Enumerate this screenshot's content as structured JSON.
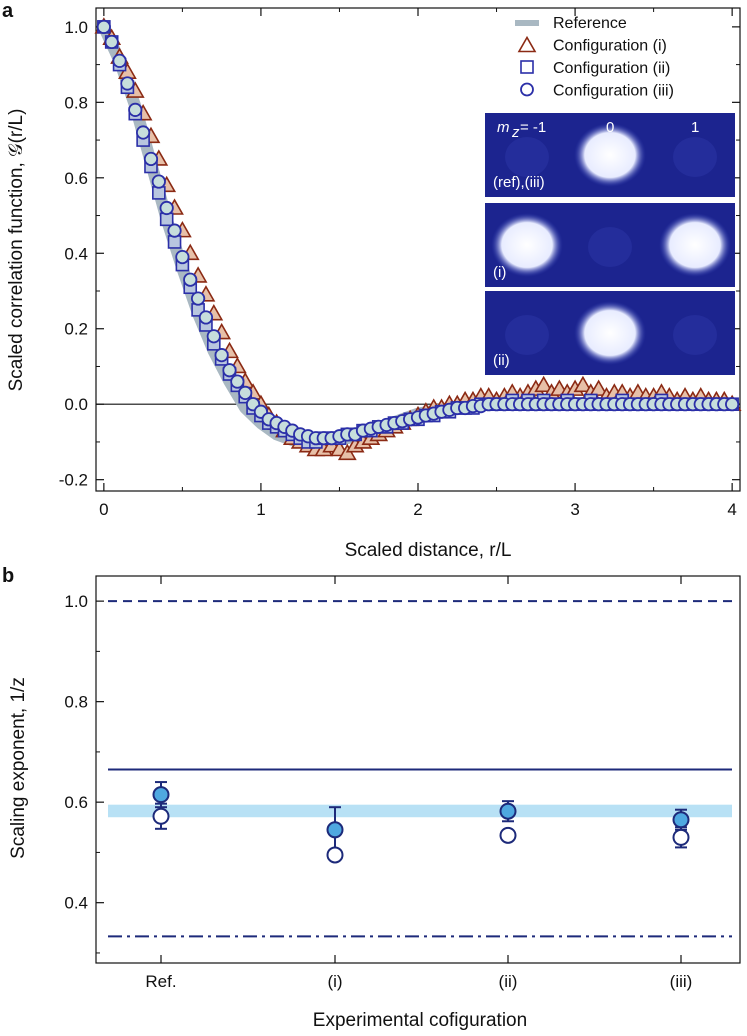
{
  "chart_data": [
    {
      "panel": "a",
      "type": "scatter",
      "xlabel": "Scaled distance, r/L",
      "ylabel": "Scaled correlation function, 𝒢(r/L)",
      "xlim": [
        -0.05,
        4.05
      ],
      "ylim": [
        -0.23,
        1.05
      ],
      "x_ticks": [
        "0",
        "1",
        "2",
        "3",
        "4"
      ],
      "x_tick_values": [
        0,
        1,
        2,
        3,
        4
      ],
      "y_ticks": [
        "1.0",
        "0.8",
        "0.6",
        "0.4",
        "0.2",
        "0.0",
        "-0.2"
      ],
      "y_tick_values": [
        1.0,
        0.8,
        0.6,
        0.4,
        0.2,
        0.0,
        -0.2
      ],
      "zero_line": true,
      "legend_position": "top-right",
      "legend": [
        "Reference",
        "Configuration (i)",
        "Configuration (ii)",
        "Configuration (iii)"
      ],
      "series": [
        {
          "name": "Reference",
          "marker": "band",
          "color": "#a9b8c2",
          "x": [
            0,
            0.1,
            0.2,
            0.3,
            0.4,
            0.5,
            0.6,
            0.7,
            0.8,
            0.9,
            1.0,
            1.1,
            1.2,
            1.3,
            1.4,
            1.5,
            1.6,
            1.7,
            1.8,
            1.9,
            2.0,
            2.2,
            2.4,
            2.6,
            2.8,
            3.0,
            3.2,
            3.4,
            3.6,
            3.8,
            4.0
          ],
          "y": [
            1.0,
            0.91,
            0.79,
            0.64,
            0.49,
            0.36,
            0.24,
            0.14,
            0.06,
            -0.01,
            -0.05,
            -0.08,
            -0.095,
            -0.1,
            -0.1,
            -0.095,
            -0.085,
            -0.07,
            -0.055,
            -0.04,
            -0.025,
            -0.01,
            0.0,
            0.005,
            0.005,
            0.003,
            0.002,
            0.001,
            0.0,
            0.0,
            0.0
          ]
        },
        {
          "name": "Configuration (i)",
          "marker": "triangle",
          "color": "#8b2a14",
          "x": [
            0,
            0.05,
            0.1,
            0.15,
            0.2,
            0.25,
            0.3,
            0.35,
            0.4,
            0.45,
            0.5,
            0.55,
            0.6,
            0.65,
            0.7,
            0.75,
            0.8,
            0.85,
            0.9,
            0.95,
            1.0,
            1.05,
            1.1,
            1.15,
            1.2,
            1.25,
            1.3,
            1.35,
            1.4,
            1.45,
            1.5,
            1.55,
            1.6,
            1.65,
            1.7,
            1.75,
            1.8,
            1.85,
            1.9,
            1.95,
            2.0,
            2.05,
            2.1,
            2.15,
            2.2,
            2.25,
            2.3,
            2.35,
            2.4,
            2.45,
            2.5,
            2.55,
            2.6,
            2.65,
            2.7,
            2.75,
            2.8,
            2.85,
            2.9,
            2.95,
            3.0,
            3.05,
            3.1,
            3.15,
            3.2,
            3.25,
            3.3,
            3.35,
            3.4,
            3.45,
            3.5,
            3.55,
            3.6,
            3.65,
            3.7,
            3.75,
            3.8,
            3.85,
            3.9,
            3.95,
            4.0
          ],
          "y": [
            1.0,
            0.97,
            0.92,
            0.88,
            0.83,
            0.77,
            0.71,
            0.65,
            0.58,
            0.52,
            0.46,
            0.4,
            0.34,
            0.29,
            0.24,
            0.19,
            0.14,
            0.1,
            0.06,
            0.03,
            0.0,
            -0.03,
            -0.05,
            -0.07,
            -0.09,
            -0.1,
            -0.11,
            -0.12,
            -0.12,
            -0.11,
            -0.12,
            -0.13,
            -0.11,
            -0.1,
            -0.09,
            -0.08,
            -0.07,
            -0.06,
            -0.05,
            -0.04,
            -0.03,
            -0.02,
            -0.01,
            -0.01,
            0.0,
            0.0,
            0.01,
            0.01,
            0.02,
            0.02,
            0.01,
            0.02,
            0.03,
            0.02,
            0.03,
            0.04,
            0.05,
            0.03,
            0.04,
            0.03,
            0.04,
            0.05,
            0.03,
            0.04,
            0.02,
            0.03,
            0.03,
            0.02,
            0.03,
            0.02,
            0.02,
            0.03,
            0.02,
            0.01,
            0.02,
            0.01,
            0.02,
            0.01,
            0.01,
            0.01,
            0.0
          ]
        },
        {
          "name": "Configuration (ii)",
          "marker": "square",
          "color": "#2b2fa8",
          "x": [
            0,
            0.05,
            0.1,
            0.15,
            0.2,
            0.25,
            0.3,
            0.35,
            0.4,
            0.45,
            0.5,
            0.55,
            0.6,
            0.65,
            0.7,
            0.75,
            0.8,
            0.85,
            0.9,
            0.95,
            1.0,
            1.05,
            1.1,
            1.15,
            1.2,
            1.25,
            1.3,
            1.35,
            1.4,
            1.45,
            1.5,
            1.55,
            1.6,
            1.65,
            1.7,
            1.75,
            1.8,
            1.85,
            1.9,
            1.95,
            2.0,
            2.05,
            2.1,
            2.15,
            2.2,
            2.25,
            2.3,
            2.35,
            2.4,
            2.45,
            2.5,
            2.55,
            2.6,
            2.65,
            2.7,
            2.75,
            2.8,
            2.85,
            2.9,
            2.95,
            3.0,
            3.05,
            3.1,
            3.15,
            3.2,
            3.25,
            3.3,
            3.35,
            3.4,
            3.45,
            3.5,
            3.55,
            3.6,
            3.65,
            3.7,
            3.75,
            3.8,
            3.85,
            3.9,
            3.95,
            4.0
          ],
          "y": [
            1.0,
            0.96,
            0.9,
            0.84,
            0.77,
            0.7,
            0.63,
            0.56,
            0.49,
            0.43,
            0.37,
            0.31,
            0.25,
            0.21,
            0.16,
            0.12,
            0.08,
            0.05,
            0.02,
            -0.01,
            -0.03,
            -0.05,
            -0.06,
            -0.07,
            -0.08,
            -0.09,
            -0.1,
            -0.1,
            -0.09,
            -0.09,
            -0.09,
            -0.08,
            -0.08,
            -0.07,
            -0.07,
            -0.06,
            -0.06,
            -0.05,
            -0.05,
            -0.04,
            -0.04,
            -0.03,
            -0.03,
            -0.02,
            -0.02,
            -0.01,
            -0.01,
            -0.01,
            0.0,
            0.0,
            0.0,
            0.0,
            0.01,
            0.0,
            0.01,
            0.0,
            0.01,
            0.0,
            0.0,
            0.01,
            0.0,
            0.0,
            0.01,
            0.0,
            0.0,
            0.0,
            0.01,
            0.0,
            0.0,
            0.0,
            0.0,
            0.01,
            0.0,
            0.0,
            0.0,
            0.0,
            0.0,
            0.0,
            0.0,
            0.0,
            0.0
          ]
        },
        {
          "name": "Configuration (iii)",
          "marker": "circle",
          "color": "#2b2fa8",
          "x": [
            0,
            0.05,
            0.1,
            0.15,
            0.2,
            0.25,
            0.3,
            0.35,
            0.4,
            0.45,
            0.5,
            0.55,
            0.6,
            0.65,
            0.7,
            0.75,
            0.8,
            0.85,
            0.9,
            0.95,
            1.0,
            1.05,
            1.1,
            1.15,
            1.2,
            1.25,
            1.3,
            1.35,
            1.4,
            1.45,
            1.5,
            1.55,
            1.6,
            1.65,
            1.7,
            1.75,
            1.8,
            1.85,
            1.9,
            1.95,
            2.0,
            2.05,
            2.1,
            2.15,
            2.2,
            2.25,
            2.3,
            2.35,
            2.4,
            2.45,
            2.5,
            2.55,
            2.6,
            2.65,
            2.7,
            2.75,
            2.8,
            2.85,
            2.9,
            2.95,
            3.0,
            3.05,
            3.1,
            3.15,
            3.2,
            3.25,
            3.3,
            3.35,
            3.4,
            3.45,
            3.5,
            3.55,
            3.6,
            3.65,
            3.7,
            3.75,
            3.8,
            3.85,
            3.9,
            3.95,
            4.0
          ],
          "y": [
            1.0,
            0.96,
            0.91,
            0.85,
            0.78,
            0.72,
            0.65,
            0.59,
            0.52,
            0.46,
            0.39,
            0.33,
            0.28,
            0.23,
            0.18,
            0.13,
            0.09,
            0.06,
            0.03,
            0.0,
            -0.02,
            -0.04,
            -0.05,
            -0.06,
            -0.07,
            -0.08,
            -0.085,
            -0.09,
            -0.09,
            -0.09,
            -0.085,
            -0.08,
            -0.08,
            -0.07,
            -0.065,
            -0.06,
            -0.055,
            -0.05,
            -0.045,
            -0.04,
            -0.035,
            -0.03,
            -0.025,
            -0.02,
            -0.015,
            -0.01,
            -0.01,
            -0.005,
            -0.005,
            0.0,
            0.0,
            0.0,
            0.0,
            0.0,
            0.0,
            0.0,
            0.0,
            0.0,
            0.0,
            0.0,
            0.0,
            0.0,
            0.0,
            0.0,
            0.0,
            0.0,
            0.0,
            0.0,
            0.0,
            0.0,
            0.0,
            0.0,
            0.0,
            0.0,
            0.0,
            0.0,
            0.0,
            0.0,
            0.0,
            0.0,
            0.0
          ]
        }
      ],
      "inset": {
        "header": [
          "m",
          "z",
          " = -1",
          "0",
          "1"
        ],
        "frames": [
          {
            "label": "(ref),(iii)",
            "bright": [
              false,
              true,
              false
            ]
          },
          {
            "label": "(i)",
            "bright": [
              true,
              false,
              true
            ]
          },
          {
            "label": "(ii)",
            "bright": [
              false,
              true,
              false
            ]
          }
        ]
      }
    },
    {
      "panel": "b",
      "type": "scatter",
      "xlabel": "Experimental cofiguration",
      "ylabel": "Scaling exponent, 1/z",
      "ylim": [
        0.28,
        1.05
      ],
      "categories": [
        "Ref.",
        "(i)",
        "(ii)",
        "(iii)"
      ],
      "y_ticks": [
        "1.0",
        "0.8",
        "0.6",
        "0.4"
      ],
      "y_tick_values": [
        1.0,
        0.8,
        0.6,
        0.4
      ],
      "reference_lines": [
        {
          "y": 1.0,
          "style": "dashed"
        },
        {
          "y": 0.665,
          "style": "solid"
        },
        {
          "y": 0.333,
          "style": "dashdot"
        }
      ],
      "band": [
        0.57,
        0.595
      ],
      "series": [
        {
          "name": "filled",
          "marker": "filled-circle",
          "color": "#4fa8e0",
          "values": [
            0.615,
            0.545,
            0.582,
            0.565
          ],
          "err": [
            0.025,
            0.045,
            0.02,
            0.02
          ]
        },
        {
          "name": "open",
          "marker": "open-circle",
          "color": "#ffffff",
          "values": [
            0.572,
            0.495,
            0.534,
            0.53
          ],
          "err": [
            0.025,
            0.0,
            0.0,
            0.02
          ]
        }
      ]
    }
  ]
}
